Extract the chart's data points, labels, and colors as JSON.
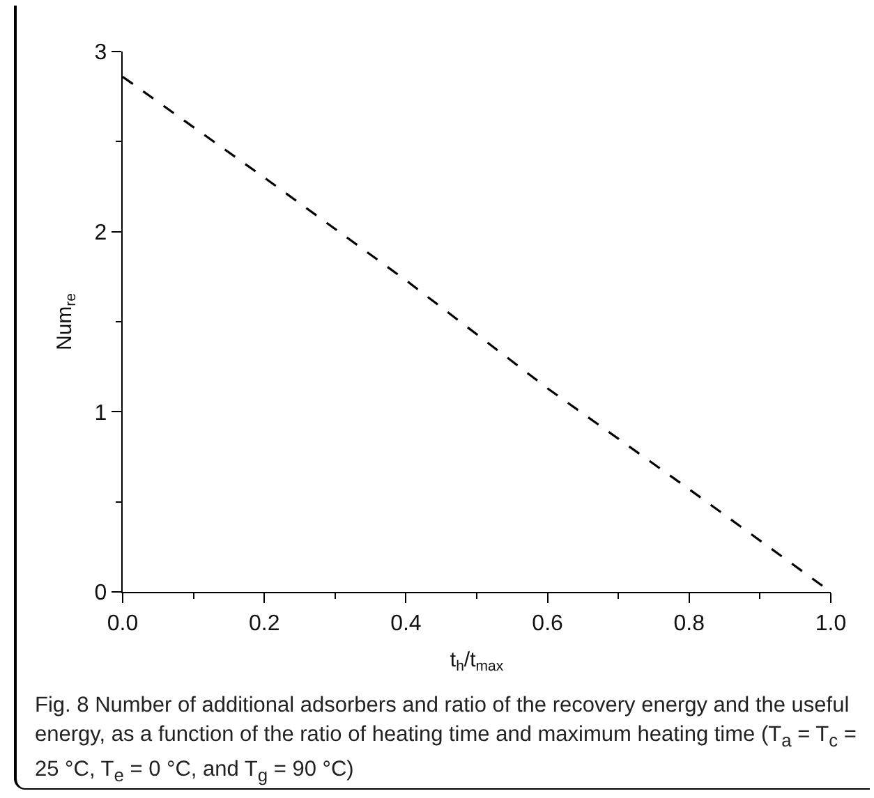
{
  "chart_data": {
    "type": "line",
    "x": [
      0,
      0.2,
      0.4,
      0.6,
      0.8,
      1.0
    ],
    "series": [
      {
        "color": "#000000",
        "values": [
          2.86,
          2.3,
          1.73,
          1.13,
          0.57,
          0
        ]
      }
    ],
    "xlabel": "t$_{h}$/t$_{max}$",
    "ylabel": "Num$_{re}$",
    "xlim": [
      0,
      1
    ],
    "xticks": [
      {
        "value": 0,
        "label": "0.0"
      },
      {
        "value": 0.2,
        "label": "0.2"
      },
      {
        "value": 0.4,
        "label": "0.4"
      },
      {
        "value": 0.6,
        "label": "0.6"
      },
      {
        "value": 0.8,
        "label": "0.8"
      },
      {
        "value": 1,
        "label": "1.0"
      }
    ],
    "ylim": [
      0,
      3
    ],
    "yticks": [
      0,
      1,
      2,
      3
    ],
    "grid": false,
    "marker": "none",
    "line_style": "dashed",
    "annotations": [
      "Fig. 8 Number of additional adsorbers and ratio of the recovery energy and the useful energy, as a function of the ratio of heating time and maximum heating time (T$_{a}$ = T$_{c}$ = 25 °C, T$_{e}$ = 0 °C, and T$_{g}$ = 90 °C)"
    ]
  }
}
